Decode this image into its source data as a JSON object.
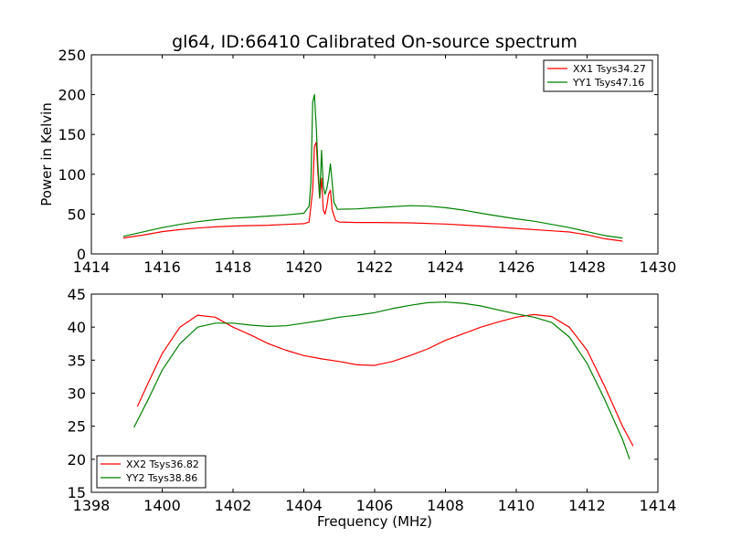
{
  "figure": {
    "title": "gl64, ID:66410 Calibrated On-source spectrum",
    "background": "#ffffff"
  },
  "chart_data": [
    {
      "type": "line",
      "title": "gl64, ID:66410 Calibrated On-source spectrum",
      "xlabel": "",
      "ylabel": "Power in Kelvin",
      "xlim": [
        1414,
        1430
      ],
      "ylim": [
        0,
        250
      ],
      "xticks": [
        1414,
        1416,
        1418,
        1420,
        1422,
        1424,
        1426,
        1428,
        1430
      ],
      "yticks": [
        0,
        50,
        100,
        150,
        200,
        250
      ],
      "grid": false,
      "legend_position": "top-right",
      "series": [
        {
          "name": "XX1 Tsys34.27",
          "color": "#ff0000",
          "points": [
            [
              1414.9,
              20
            ],
            [
              1415.5,
              24
            ],
            [
              1416,
              28
            ],
            [
              1416.5,
              30.5
            ],
            [
              1417,
              32.5
            ],
            [
              1417.5,
              34
            ],
            [
              1418,
              35
            ],
            [
              1418.5,
              35.5
            ],
            [
              1419,
              36
            ],
            [
              1419.5,
              37
            ],
            [
              1420,
              38
            ],
            [
              1420.15,
              40
            ],
            [
              1420.25,
              80
            ],
            [
              1420.3,
              135
            ],
            [
              1420.35,
              140
            ],
            [
              1420.4,
              100
            ],
            [
              1420.45,
              70
            ],
            [
              1420.5,
              95
            ],
            [
              1420.55,
              55
            ],
            [
              1420.6,
              50
            ],
            [
              1420.65,
              60
            ],
            [
              1420.7,
              75
            ],
            [
              1420.75,
              80
            ],
            [
              1420.8,
              55
            ],
            [
              1420.9,
              42
            ],
            [
              1421,
              40
            ],
            [
              1421.5,
              39.5
            ],
            [
              1422,
              39.5
            ],
            [
              1423,
              39
            ],
            [
              1424,
              37.5
            ],
            [
              1425,
              35
            ],
            [
              1426,
              32
            ],
            [
              1427,
              29
            ],
            [
              1427.5,
              27.5
            ],
            [
              1428,
              24
            ],
            [
              1428.5,
              19
            ],
            [
              1429,
              16
            ]
          ]
        },
        {
          "name": "YY1 Tsys47.16",
          "color": "#008000",
          "points": [
            [
              1414.9,
              22
            ],
            [
              1415.5,
              28
            ],
            [
              1416,
              33
            ],
            [
              1416.5,
              37
            ],
            [
              1417,
              40.5
            ],
            [
              1417.5,
              43
            ],
            [
              1418,
              45
            ],
            [
              1418.5,
              46
            ],
            [
              1419,
              47.5
            ],
            [
              1419.5,
              49
            ],
            [
              1420,
              51
            ],
            [
              1420.15,
              60
            ],
            [
              1420.2,
              90
            ],
            [
              1420.25,
              190
            ],
            [
              1420.3,
              200
            ],
            [
              1420.35,
              160
            ],
            [
              1420.4,
              110
            ],
            [
              1420.45,
              70
            ],
            [
              1420.5,
              130
            ],
            [
              1420.55,
              85
            ],
            [
              1420.6,
              75
            ],
            [
              1420.65,
              82
            ],
            [
              1420.7,
              95
            ],
            [
              1420.75,
              113
            ],
            [
              1420.8,
              90
            ],
            [
              1420.85,
              65
            ],
            [
              1420.95,
              56
            ],
            [
              1421.5,
              56.5
            ],
            [
              1422,
              58
            ],
            [
              1423,
              60.5
            ],
            [
              1423.5,
              60
            ],
            [
              1424,
              58
            ],
            [
              1424.5,
              55
            ],
            [
              1425,
              51
            ],
            [
              1425.5,
              47.5
            ],
            [
              1426,
              44
            ],
            [
              1426.5,
              41
            ],
            [
              1427,
              37
            ],
            [
              1427.5,
              33
            ],
            [
              1428,
              28
            ],
            [
              1428.5,
              23
            ],
            [
              1429,
              20
            ]
          ]
        }
      ]
    },
    {
      "type": "line",
      "title": "",
      "xlabel": "Frequency (MHz)",
      "ylabel": "",
      "xlim": [
        1398,
        1414
      ],
      "ylim": [
        15,
        45
      ],
      "xticks": [
        1398,
        1400,
        1402,
        1404,
        1406,
        1408,
        1410,
        1412,
        1414
      ],
      "yticks": [
        15,
        20,
        25,
        30,
        35,
        40,
        45
      ],
      "grid": false,
      "legend_position": "bottom-left",
      "series": [
        {
          "name": "XX2 Tsys36.82",
          "color": "#ff0000",
          "points": [
            [
              1399.3,
              28
            ],
            [
              1399.6,
              31.5
            ],
            [
              1400,
              36
            ],
            [
              1400.5,
              40
            ],
            [
              1401,
              41.8
            ],
            [
              1401.5,
              41.5
            ],
            [
              1402,
              40
            ],
            [
              1402.5,
              38.8
            ],
            [
              1403,
              37.5
            ],
            [
              1403.5,
              36.5
            ],
            [
              1404,
              35.7
            ],
            [
              1404.5,
              35.2
            ],
            [
              1405,
              34.8
            ],
            [
              1405.5,
              34.3
            ],
            [
              1406,
              34.2
            ],
            [
              1406.5,
              34.8
            ],
            [
              1407,
              35.7
            ],
            [
              1407.5,
              36.7
            ],
            [
              1408,
              38
            ],
            [
              1408.5,
              39
            ],
            [
              1409,
              40
            ],
            [
              1409.5,
              40.8
            ],
            [
              1410,
              41.5
            ],
            [
              1410.5,
              41.9
            ],
            [
              1411,
              41.6
            ],
            [
              1411.5,
              40
            ],
            [
              1412,
              36.5
            ],
            [
              1412.5,
              31
            ],
            [
              1413,
              25
            ],
            [
              1413.3,
              22
            ]
          ]
        },
        {
          "name": "YY2 Tsys38.86",
          "color": "#008000",
          "points": [
            [
              1399.2,
              24.8
            ],
            [
              1399.6,
              29
            ],
            [
              1400,
              33.5
            ],
            [
              1400.5,
              37.5
            ],
            [
              1401,
              40
            ],
            [
              1401.5,
              40.6
            ],
            [
              1402,
              40.6
            ],
            [
              1402.5,
              40.3
            ],
            [
              1403,
              40.1
            ],
            [
              1403.5,
              40.2
            ],
            [
              1404,
              40.6
            ],
            [
              1404.5,
              41
            ],
            [
              1405,
              41.5
            ],
            [
              1405.5,
              41.8
            ],
            [
              1406,
              42.2
            ],
            [
              1406.5,
              42.8
            ],
            [
              1407,
              43.3
            ],
            [
              1407.5,
              43.7
            ],
            [
              1408,
              43.8
            ],
            [
              1408.5,
              43.6
            ],
            [
              1409,
              43.2
            ],
            [
              1409.5,
              42.6
            ],
            [
              1410,
              42
            ],
            [
              1410.5,
              41.5
            ],
            [
              1411,
              40.7
            ],
            [
              1411.5,
              38.5
            ],
            [
              1412,
              34.5
            ],
            [
              1412.5,
              29
            ],
            [
              1413,
              23
            ],
            [
              1413.2,
              20
            ]
          ]
        }
      ]
    }
  ]
}
